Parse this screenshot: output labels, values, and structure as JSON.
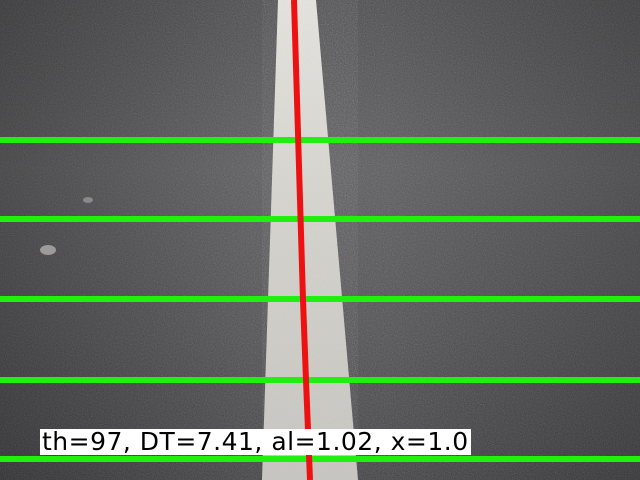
{
  "overlay": {
    "readout": "th=97, DT=7.41, al=1.02, x=1.0"
  },
  "colors": {
    "asphalt_dark": "#3a3a3c",
    "asphalt_mid": "#58585a",
    "lane_marking": "#d8d6d0",
    "scan_line": "#22ee11",
    "center_line": "#ee1111"
  }
}
